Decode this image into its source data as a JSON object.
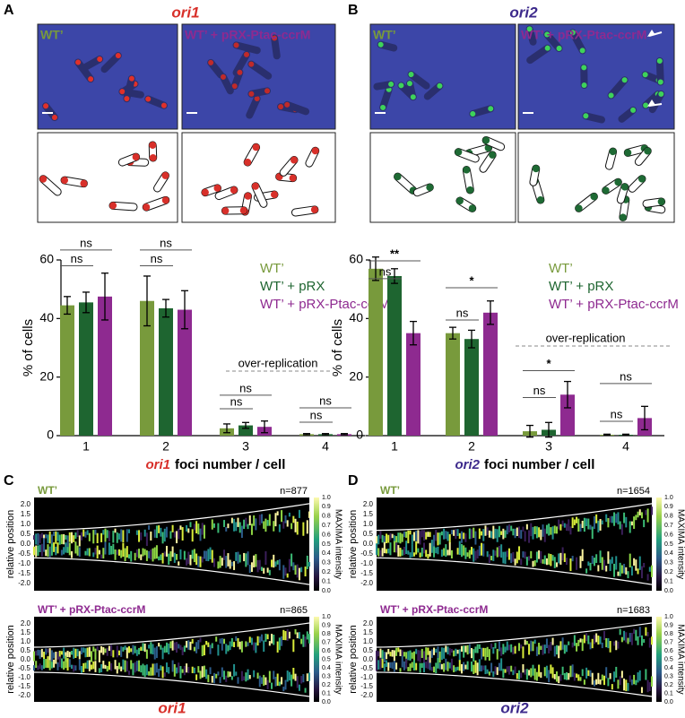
{
  "panels": {
    "A": {
      "letter": "A",
      "title": "ori1",
      "image_labels": [
        "WT’",
        "WT’ + pRX-Ptac-ccrM"
      ]
    },
    "B": {
      "letter": "B",
      "title": "ori2",
      "image_labels": [
        "WT’",
        "WT’ + pRX-Ptac-ccrM"
      ]
    },
    "C": {
      "letter": "C",
      "gene": "ori1",
      "plots": [
        {
          "label": "WT’",
          "n": "n=877"
        },
        {
          "label": "WT’ + pRX-Ptac-ccrM",
          "n": "n=865"
        }
      ]
    },
    "D": {
      "letter": "D",
      "gene": "ori2",
      "plots": [
        {
          "label": "WT’",
          "n": "n=1654"
        },
        {
          "label": "WT’ + pRX-Ptac-ccrM",
          "n": "n=1683"
        }
      ]
    }
  },
  "demograph_axis": {
    "ylabel": "relative position",
    "yticks": [
      "2.0",
      "1.5",
      "1.0",
      "0.5",
      "0.0",
      "-0.5",
      "-1.0",
      "-1.5",
      "-2.0"
    ],
    "colorbar_label": "MAXIMA intensity",
    "colorbar_ticks": [
      "1.0",
      "0.9",
      "0.8",
      "0.7",
      "0.6",
      "0.5",
      "0.4",
      "0.3",
      "0.2",
      "0.1",
      "0.0"
    ]
  },
  "chart_data": [
    {
      "type": "bar",
      "ylabel": "% of cells",
      "xlabel_gene": "ori1",
      "xlabel": "foci number / cell",
      "categories": [
        "1",
        "2",
        "3",
        "4"
      ],
      "ylim": [
        0,
        60
      ],
      "yticks": [
        0,
        20,
        40,
        60
      ],
      "series": [
        {
          "name": "WT’",
          "color": "#789a3c",
          "values": [
            44.5,
            46,
            2.5,
            0.5
          ],
          "errors": [
            3,
            8.5,
            1.5,
            0.2
          ]
        },
        {
          "name": "WT’ + pRX",
          "color": "#1e6530",
          "values": [
            45.5,
            43.5,
            3.5,
            0.5
          ],
          "errors": [
            3.5,
            3,
            1,
            0.2
          ]
        },
        {
          "name": "WT’ + pRX-Ptac-ccrM",
          "color": "#8e2a90",
          "values": [
            47.5,
            43,
            3,
            0.5
          ],
          "errors": [
            8,
            6.5,
            2,
            0.2
          ]
        }
      ],
      "annotations": [
        "ns",
        "ns",
        "ns",
        "ns",
        "ns",
        "ns",
        "ns",
        "ns"
      ],
      "annotation_text": "over-replication"
    },
    {
      "type": "bar",
      "ylabel": "% of cells",
      "xlabel_gene": "ori2",
      "xlabel": "foci number / cell",
      "categories": [
        "1",
        "2",
        "3",
        "4"
      ],
      "ylim": [
        0,
        60
      ],
      "yticks": [
        0,
        20,
        40,
        60
      ],
      "series": [
        {
          "name": "WT’",
          "color": "#789a3c",
          "values": [
            57,
            35,
            1.5,
            0.3
          ],
          "errors": [
            4,
            2,
            2,
            0.2
          ]
        },
        {
          "name": "WT’ + pRX",
          "color": "#1e6530",
          "values": [
            54.5,
            33,
            2,
            0.3
          ],
          "errors": [
            2.5,
            3,
            2.5,
            0.2
          ]
        },
        {
          "name": "WT’ + pRX-Ptac-ccrM",
          "color": "#8e2a90",
          "values": [
            35,
            42,
            14,
            6
          ],
          "errors": [
            4,
            4,
            4.5,
            4
          ]
        }
      ],
      "annotations": [
        "ns",
        "**",
        "ns",
        "*",
        "ns",
        "*",
        "ns",
        "ns"
      ],
      "annotation_text": "over-replication"
    }
  ]
}
